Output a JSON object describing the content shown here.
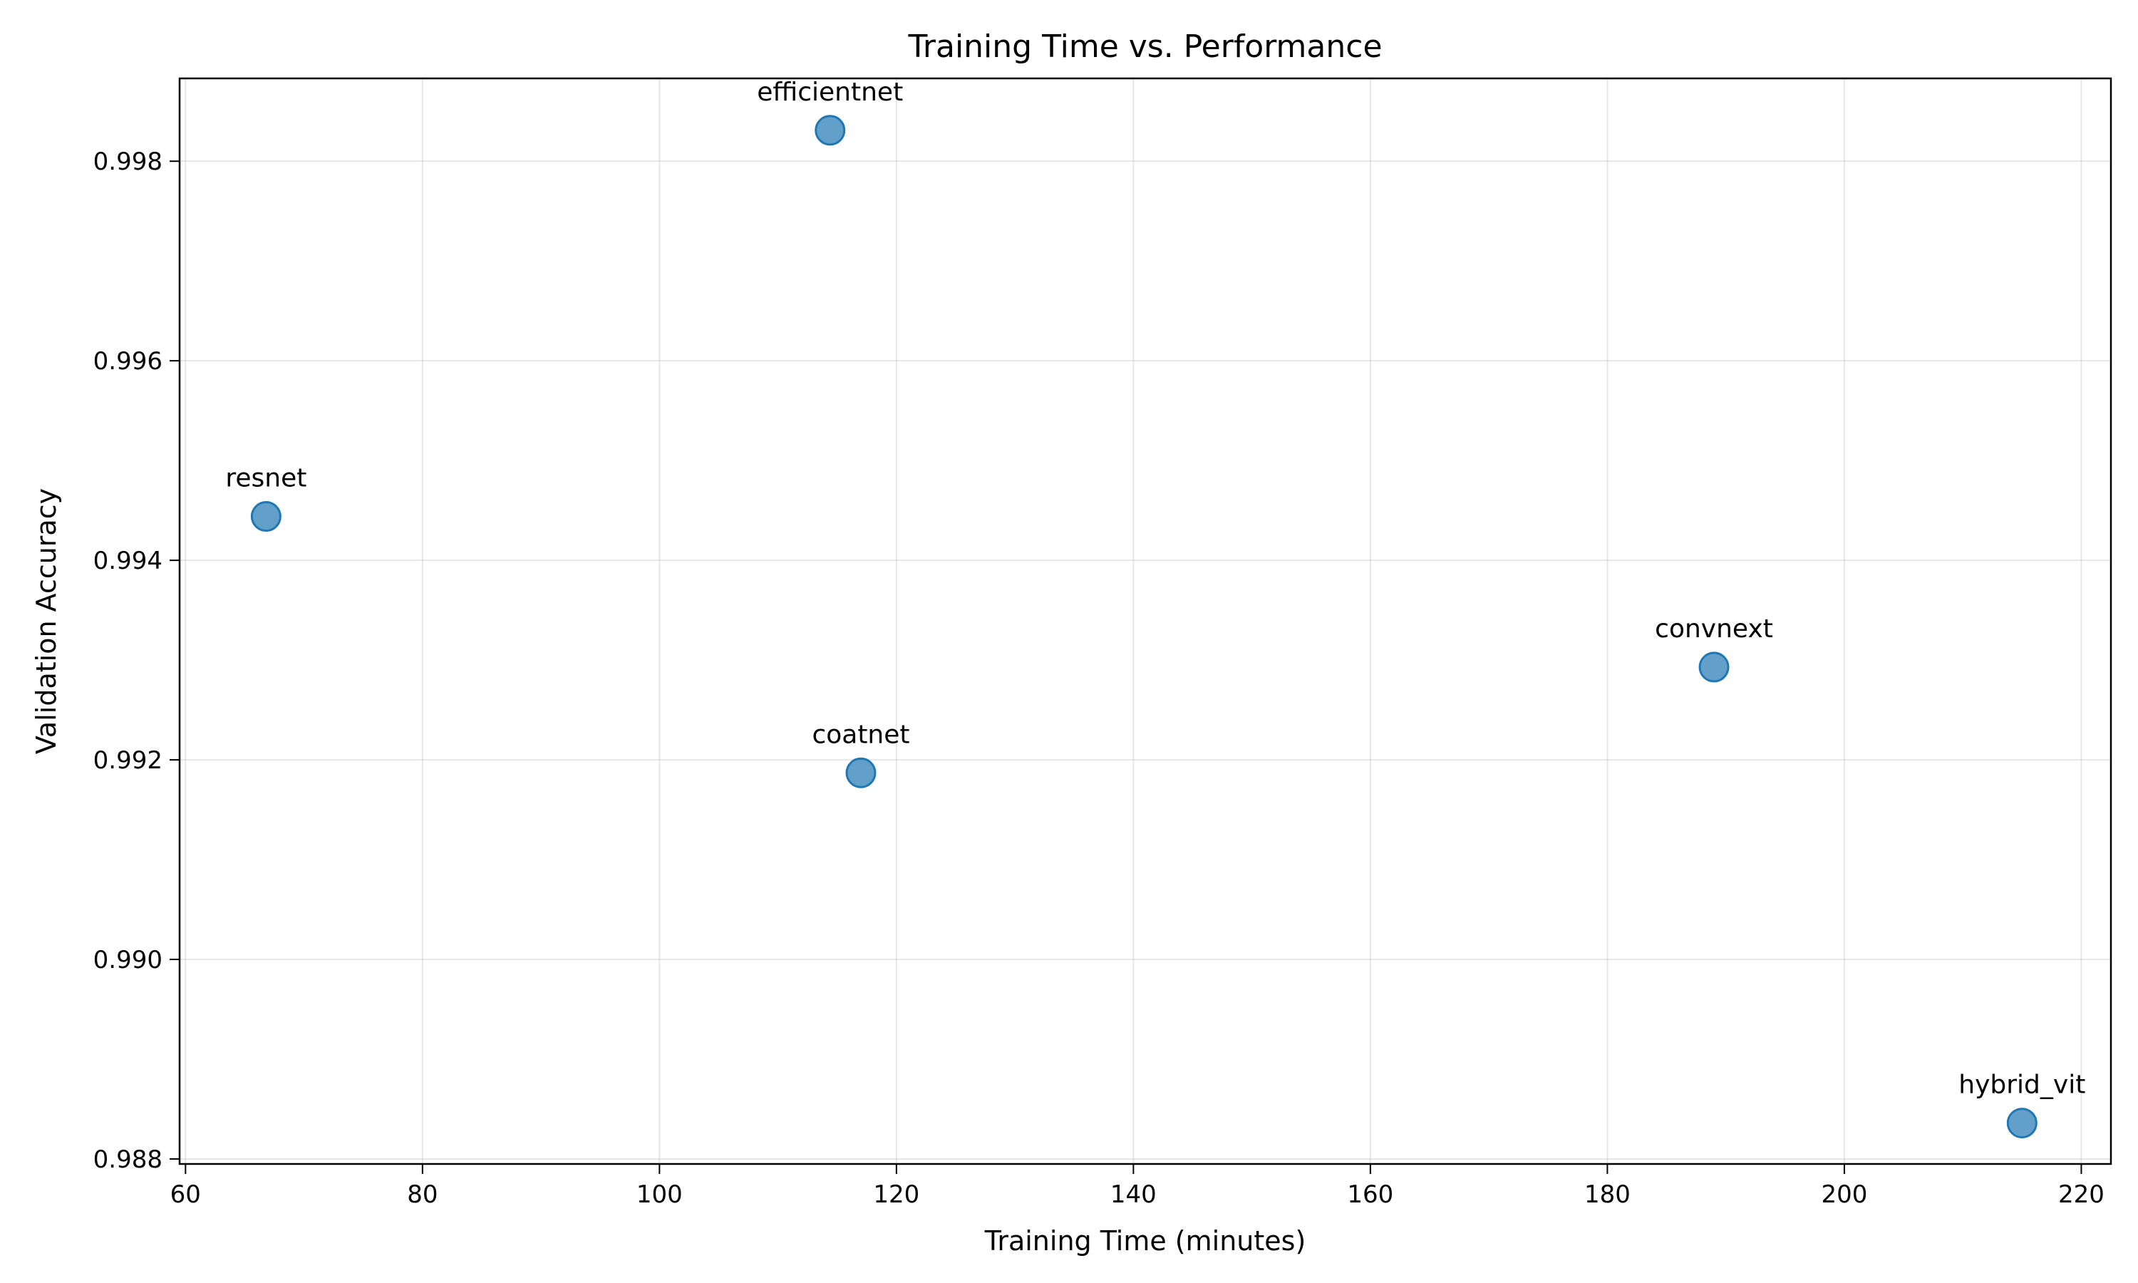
{
  "chart_data": {
    "type": "scatter",
    "title": "Training Time vs. Performance",
    "xlabel": "Training Time (minutes)",
    "ylabel": "Validation Accuracy",
    "xlim": [
      59.5,
      222.5
    ],
    "ylim": [
      0.98795,
      0.99883
    ],
    "x_ticks": [
      60,
      80,
      100,
      120,
      140,
      160,
      180,
      200,
      220
    ],
    "y_ticks": [
      0.988,
      0.99,
      0.992,
      0.994,
      0.996,
      0.998
    ],
    "x_tick_labels": [
      "60",
      "80",
      "100",
      "120",
      "140",
      "160",
      "180",
      "200",
      "220"
    ],
    "y_tick_labels": [
      "0.988",
      "0.990",
      "0.992",
      "0.994",
      "0.996",
      "0.998"
    ],
    "grid": true,
    "point_color": "#1f77b4",
    "point_opacity": 0.7,
    "points": [
      {
        "label": "resnet",
        "x": 66.8,
        "y": 0.99444
      },
      {
        "label": "efficientnet",
        "x": 114.4,
        "y": 0.99831
      },
      {
        "label": "coatnet",
        "x": 117.0,
        "y": 0.99187
      },
      {
        "label": "convnext",
        "x": 189.0,
        "y": 0.99293
      },
      {
        "label": "hybrid_vit",
        "x": 215.0,
        "y": 0.98836
      }
    ]
  }
}
